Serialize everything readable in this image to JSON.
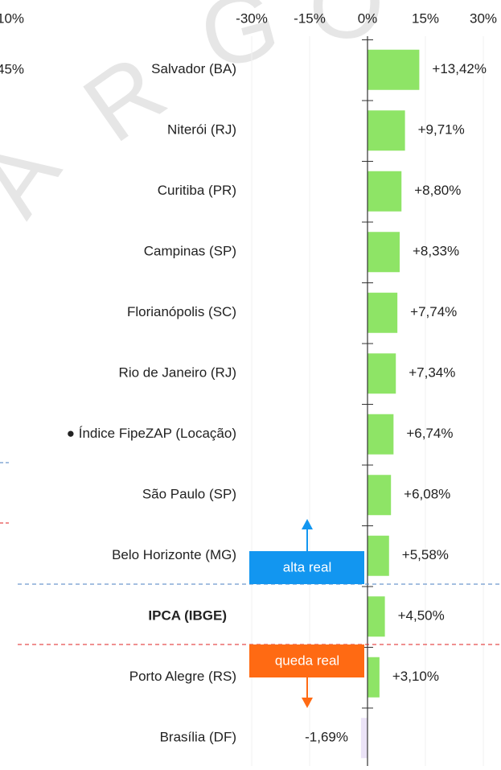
{
  "chart_data": {
    "type": "hbar",
    "categories": [
      "Salvador (BA)",
      "Niterói (RJ)",
      "Curitiba (PR)",
      "Campinas (SP)",
      "Florianópolis (SC)",
      "Rio de Janeiro (RJ)",
      "● Índice FipeZAP (Locação)",
      "São Paulo (SP)",
      "Belo Horizonte (MG)",
      "IPCA (IBGE)",
      "Porto Alegre (RS)",
      "Brasília (DF)"
    ],
    "values": [
      13.42,
      9.71,
      8.8,
      8.33,
      7.74,
      7.34,
      6.74,
      6.08,
      5.58,
      4.5,
      3.1,
      -1.69
    ],
    "value_labels": [
      "+13,42%",
      "+9,71%",
      "+8,80%",
      "+8,33%",
      "+7,74%",
      "+7,34%",
      "+6,74%",
      "+6,08%",
      "+5,58%",
      "+4,50%",
      "+3,10%",
      "-1,69%"
    ],
    "color": "#8ee466",
    "negative_color": "#ebe3f7",
    "bold_category": "IPCA (IBGE)",
    "xlim": [
      -30,
      30
    ],
    "xticks": [
      {
        "value": -30,
        "label": "-30%"
      },
      {
        "value": -15,
        "label": "-15%"
      },
      {
        "value": 0,
        "label": "0%"
      },
      {
        "value": 15,
        "label": "15%"
      },
      {
        "value": 30,
        "label": "30%"
      }
    ],
    "grid": true,
    "annotations": [
      "alta real",
      "queda real"
    ],
    "clipped_labels": [
      "10%",
      "45%"
    ],
    "watermark": [
      "A",
      "R",
      "G",
      "O"
    ]
  }
}
